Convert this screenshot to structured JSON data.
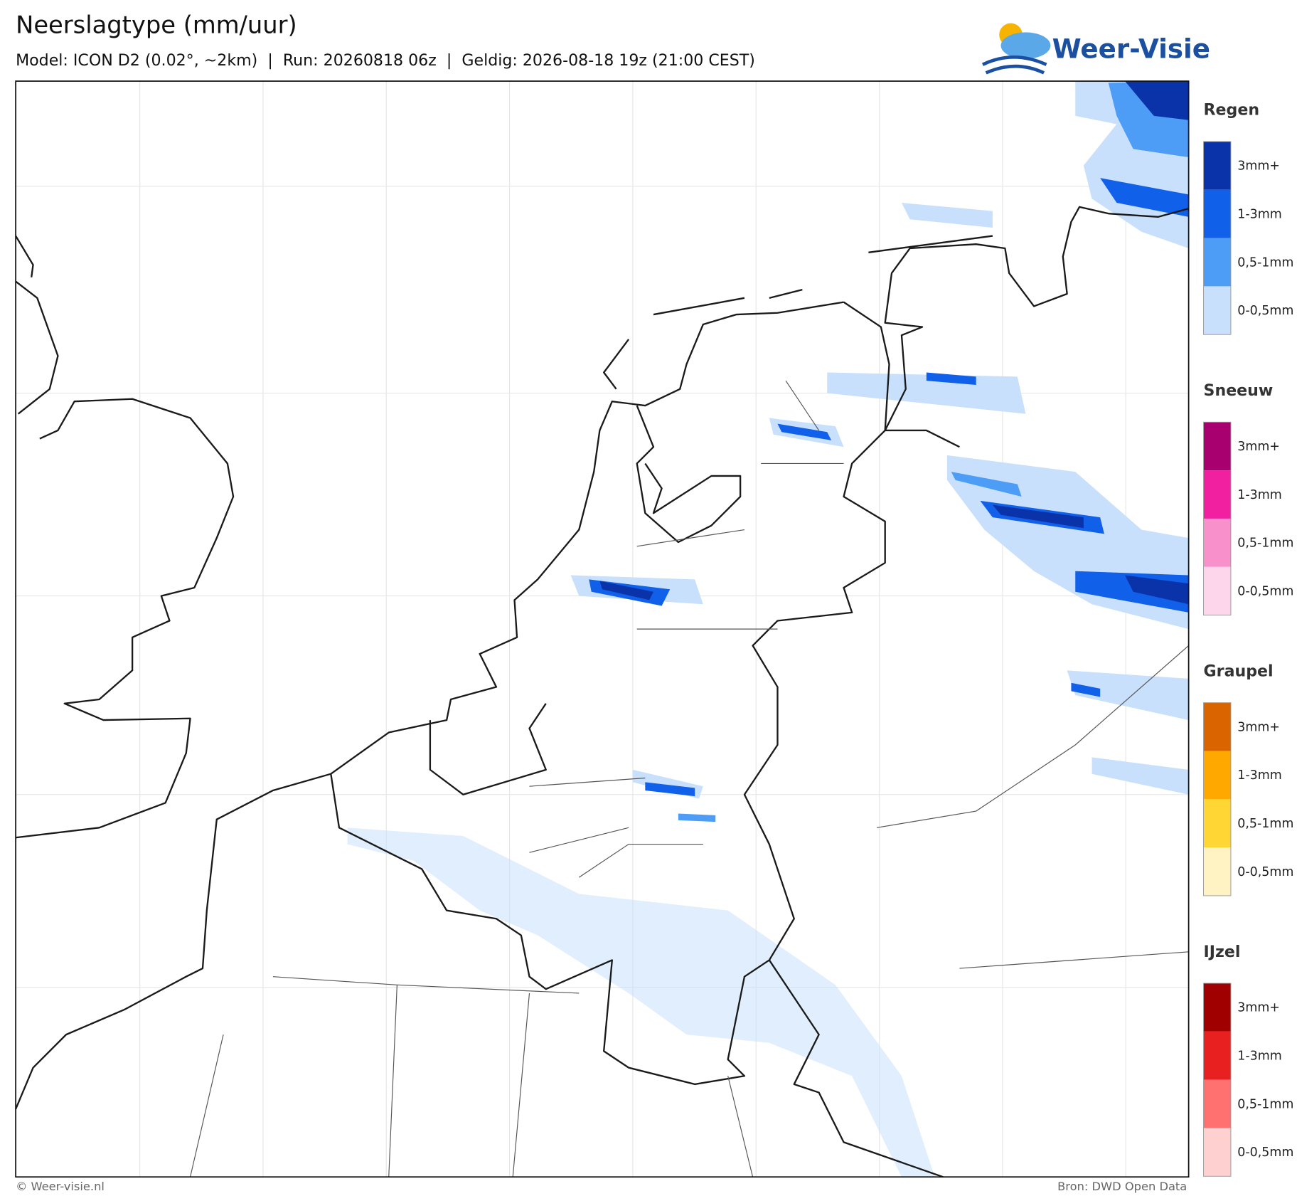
{
  "header": {
    "title": "Neerslagtype (mm/uur)",
    "subtitle": "Model: ICON D2 (0.02°, ~2km)  |  Run: 20260818 06z  |  Geldig: 2026-08-18 19z (21:00 CEST)"
  },
  "logo": {
    "text": "Weer-Visie"
  },
  "legend": [
    {
      "name": "Regen",
      "items": [
        {
          "label": "3mm+",
          "color": "#0a33aa"
        },
        {
          "label": "1-3mm",
          "color": "#1060ea"
        },
        {
          "label": "0,5-1mm",
          "color": "#4d9cf5"
        },
        {
          "label": "0-0,5mm",
          "color": "#c8e0fb"
        }
      ]
    },
    {
      "name": "Sneeuw",
      "items": [
        {
          "label": "3mm+",
          "color": "#a8006e"
        },
        {
          "label": "1-3mm",
          "color": "#f020a0"
        },
        {
          "label": "0,5-1mm",
          "color": "#f890cc"
        },
        {
          "label": "0-0,5mm",
          "color": "#fdd6ec"
        }
      ]
    },
    {
      "name": "Graupel",
      "items": [
        {
          "label": "3mm+",
          "color": "#d96400"
        },
        {
          "label": "1-3mm",
          "color": "#ffa800"
        },
        {
          "label": "0,5-1mm",
          "color": "#ffd633"
        },
        {
          "label": "0-0,5mm",
          "color": "#fff3c4"
        }
      ]
    },
    {
      "name": "IJzel",
      "items": [
        {
          "label": "3mm+",
          "color": "#a00000"
        },
        {
          "label": "1-3mm",
          "color": "#e82020"
        },
        {
          "label": "0,5-1mm",
          "color": "#ff7070"
        },
        {
          "label": "0-0,5mm",
          "color": "#ffd0d0"
        }
      ]
    }
  ],
  "footer": {
    "left": "© Weer-visie.nl",
    "right": "Bron: DWD Open Data"
  }
}
